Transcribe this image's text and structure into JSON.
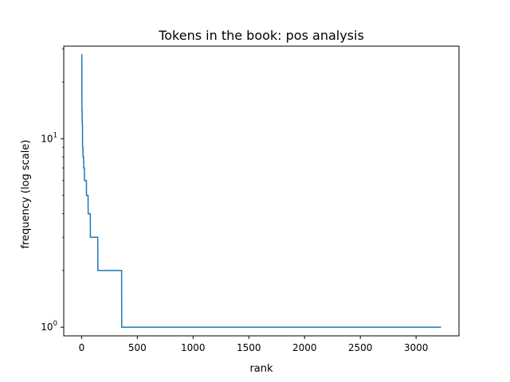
{
  "chart_data": {
    "type": "line",
    "title": "Tokens in the book: pos analysis",
    "xlabel": "rank",
    "ylabel": "frequency (log scale)",
    "y_scale": "log",
    "grid": false,
    "legend": "none",
    "xlim": [
      -160,
      3385
    ],
    "ylim": [
      0.9,
      31
    ],
    "x_ticks": [
      {
        "value": 0,
        "label": "0"
      },
      {
        "value": 500,
        "label": "500"
      },
      {
        "value": 1000,
        "label": "1000"
      },
      {
        "value": 1500,
        "label": "1500"
      },
      {
        "value": 2000,
        "label": "2000"
      },
      {
        "value": 2500,
        "label": "2500"
      },
      {
        "value": 3000,
        "label": "3000"
      }
    ],
    "y_ticks": [
      {
        "value": 1,
        "base": "10",
        "exp": "0"
      },
      {
        "value": 10,
        "base": "10",
        "exp": "1"
      }
    ],
    "series": [
      {
        "color": "#1f77b4",
        "x": [
          0,
          2,
          3,
          5,
          6,
          8,
          9,
          12,
          13,
          18,
          19,
          25,
          26,
          33,
          34,
          43,
          44,
          58,
          59,
          78,
          79,
          145,
          146,
          359,
          360,
          3224
        ],
        "y": [
          28,
          28,
          14,
          14,
          12,
          12,
          9,
          9,
          8,
          8,
          7,
          7,
          6,
          6,
          6,
          6,
          5,
          5,
          4,
          4,
          3,
          3,
          2,
          2,
          1,
          1
        ]
      }
    ]
  }
}
